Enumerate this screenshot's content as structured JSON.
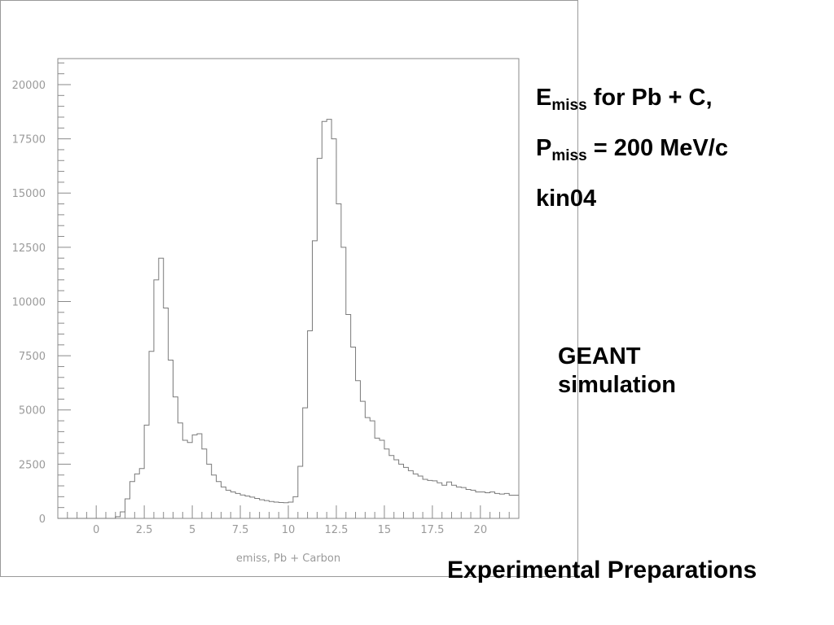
{
  "chart_data": {
    "type": "histogram",
    "xlabel": "emiss, Pb + Carbon",
    "ylabel": "",
    "xlim": [
      -2,
      22
    ],
    "ylim": [
      0,
      21200
    ],
    "x_ticks": [
      "0",
      "2.5",
      "5",
      "7.5",
      "10",
      "12.5",
      "15",
      "17.5",
      "20"
    ],
    "x_tick_values": [
      0,
      2.5,
      5,
      7.5,
      10,
      12.5,
      15,
      17.5,
      20
    ],
    "y_ticks": [
      "0",
      "2500",
      "5000",
      "7500",
      "10000",
      "12500",
      "15000",
      "17500",
      "20000"
    ],
    "y_tick_values": [
      0,
      2500,
      5000,
      7500,
      10000,
      12500,
      15000,
      17500,
      20000
    ],
    "bin_start": -2,
    "bin_width": 0.25,
    "values": [
      0,
      0,
      0,
      0,
      0,
      0,
      0,
      0,
      0,
      0,
      0,
      0,
      80,
      300,
      900,
      1700,
      2050,
      2300,
      4300,
      7700,
      11000,
      12000,
      9700,
      7300,
      5600,
      4400,
      3600,
      3500,
      3850,
      3900,
      3200,
      2500,
      2000,
      1700,
      1450,
      1300,
      1220,
      1150,
      1080,
      1030,
      980,
      920,
      860,
      820,
      780,
      750,
      730,
      720,
      750,
      1000,
      2400,
      5100,
      8650,
      12800,
      16600,
      18300,
      18400,
      17500,
      14500,
      12500,
      9400,
      7900,
      6350,
      5400,
      4650,
      4500,
      3700,
      3600,
      3200,
      2900,
      2700,
      2500,
      2350,
      2200,
      2050,
      1950,
      1800,
      1750,
      1730,
      1640,
      1530,
      1680,
      1530,
      1450,
      1420,
      1330,
      1300,
      1220,
      1220,
      1180,
      1220,
      1150,
      1120,
      1150,
      1070,
      1070
    ],
    "grid": false,
    "line_color": "#7a7a7a",
    "axis_color": "#8a8a8a"
  },
  "annotations": {
    "line1": {
      "main": "E",
      "sub": "miss",
      "rest": " for Pb + C,"
    },
    "line2": {
      "main": "P",
      "sub": "miss",
      "rest": " = 200 MeV/c"
    },
    "line3": "kin04",
    "geant1": "GEANT",
    "geant2": "simulation"
  },
  "slide_title": "Experimental Preparations"
}
